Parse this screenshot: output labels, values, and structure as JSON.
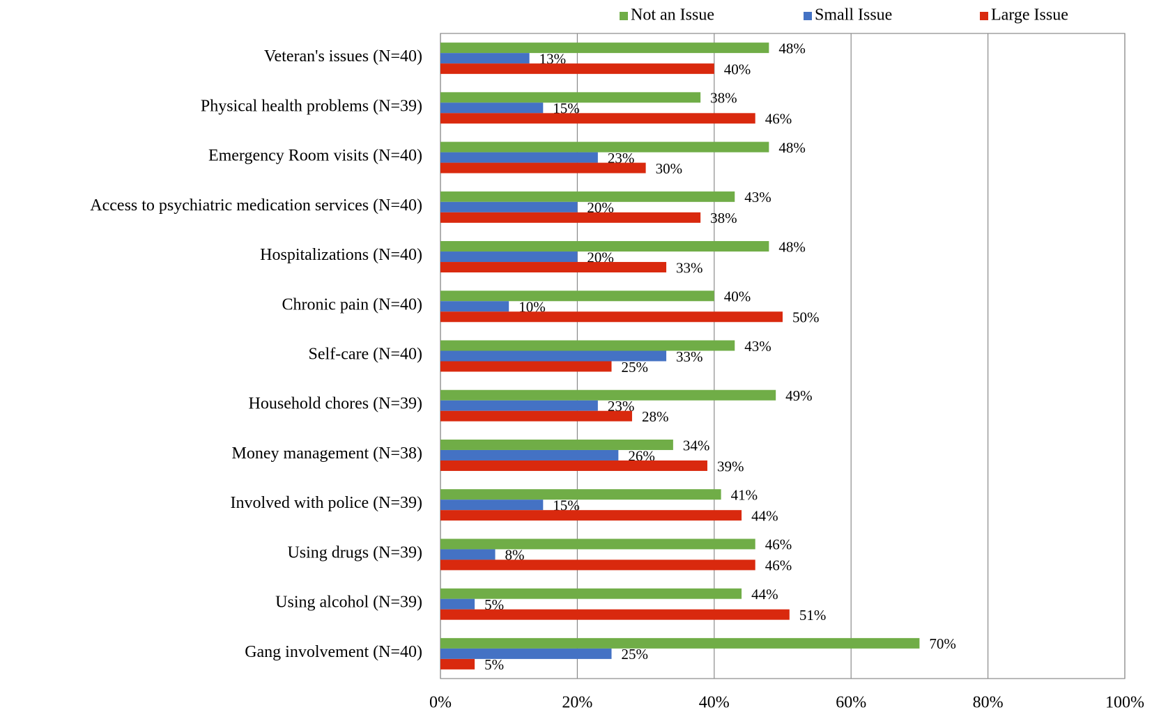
{
  "chart_data": {
    "type": "bar",
    "orientation": "horizontal",
    "categories": [
      "Veteran's issues (N=40)",
      "Physical health problems (N=39)",
      "Emergency Room visits (N=40)",
      "Access to psychiatric medication services (N=40)",
      "Hospitalizations (N=40)",
      "Chronic pain (N=40)",
      "Self-care (N=40)",
      "Household chores (N=39)",
      "Money management (N=38)",
      "Involved with police (N=39)",
      "Using drugs (N=39)",
      "Using alcohol (N=39)",
      "Gang involvement (N=40)"
    ],
    "series": [
      {
        "name": "Not an Issue",
        "color": "#70ad47",
        "values": [
          48,
          38,
          48,
          43,
          48,
          40,
          43,
          49,
          34,
          41,
          46,
          44,
          70
        ],
        "value_labels": [
          "48%",
          "38%",
          "48%",
          "43%",
          "48%",
          "40%",
          "43%",
          "49%",
          "34%",
          "41%",
          "46%",
          "44%",
          "70%"
        ]
      },
      {
        "name": "Small Issue",
        "color": "#4472c4",
        "values": [
          13,
          15,
          23,
          20,
          20,
          10,
          33,
          23,
          26,
          15,
          8,
          5,
          25
        ],
        "value_labels": [
          "13%",
          "15%",
          "23%",
          "20%",
          "20%",
          "10%",
          "33%",
          "23%",
          "26%",
          "15%",
          "8%",
          "5%",
          "25%"
        ]
      },
      {
        "name": "Large Issue",
        "color": "#d9290e",
        "values": [
          40,
          46,
          30,
          38,
          33,
          50,
          25,
          28,
          39,
          44,
          46,
          51,
          5
        ],
        "value_labels": [
          "40%",
          "46%",
          "30%",
          "38%",
          "33%",
          "50%",
          "25%",
          "28%",
          "39%",
          "44%",
          "46%",
          "51%",
          "5%"
        ]
      }
    ],
    "xlim": [
      0,
      100
    ],
    "xticks": [
      {
        "value": 0,
        "label": "0%"
      },
      {
        "value": 20,
        "label": "20%"
      },
      {
        "value": 40,
        "label": "40%"
      },
      {
        "value": 60,
        "label": "60%"
      },
      {
        "value": 80,
        "label": "80%"
      },
      {
        "value": 100,
        "label": "100%"
      }
    ],
    "grid": true,
    "legend": "top"
  }
}
